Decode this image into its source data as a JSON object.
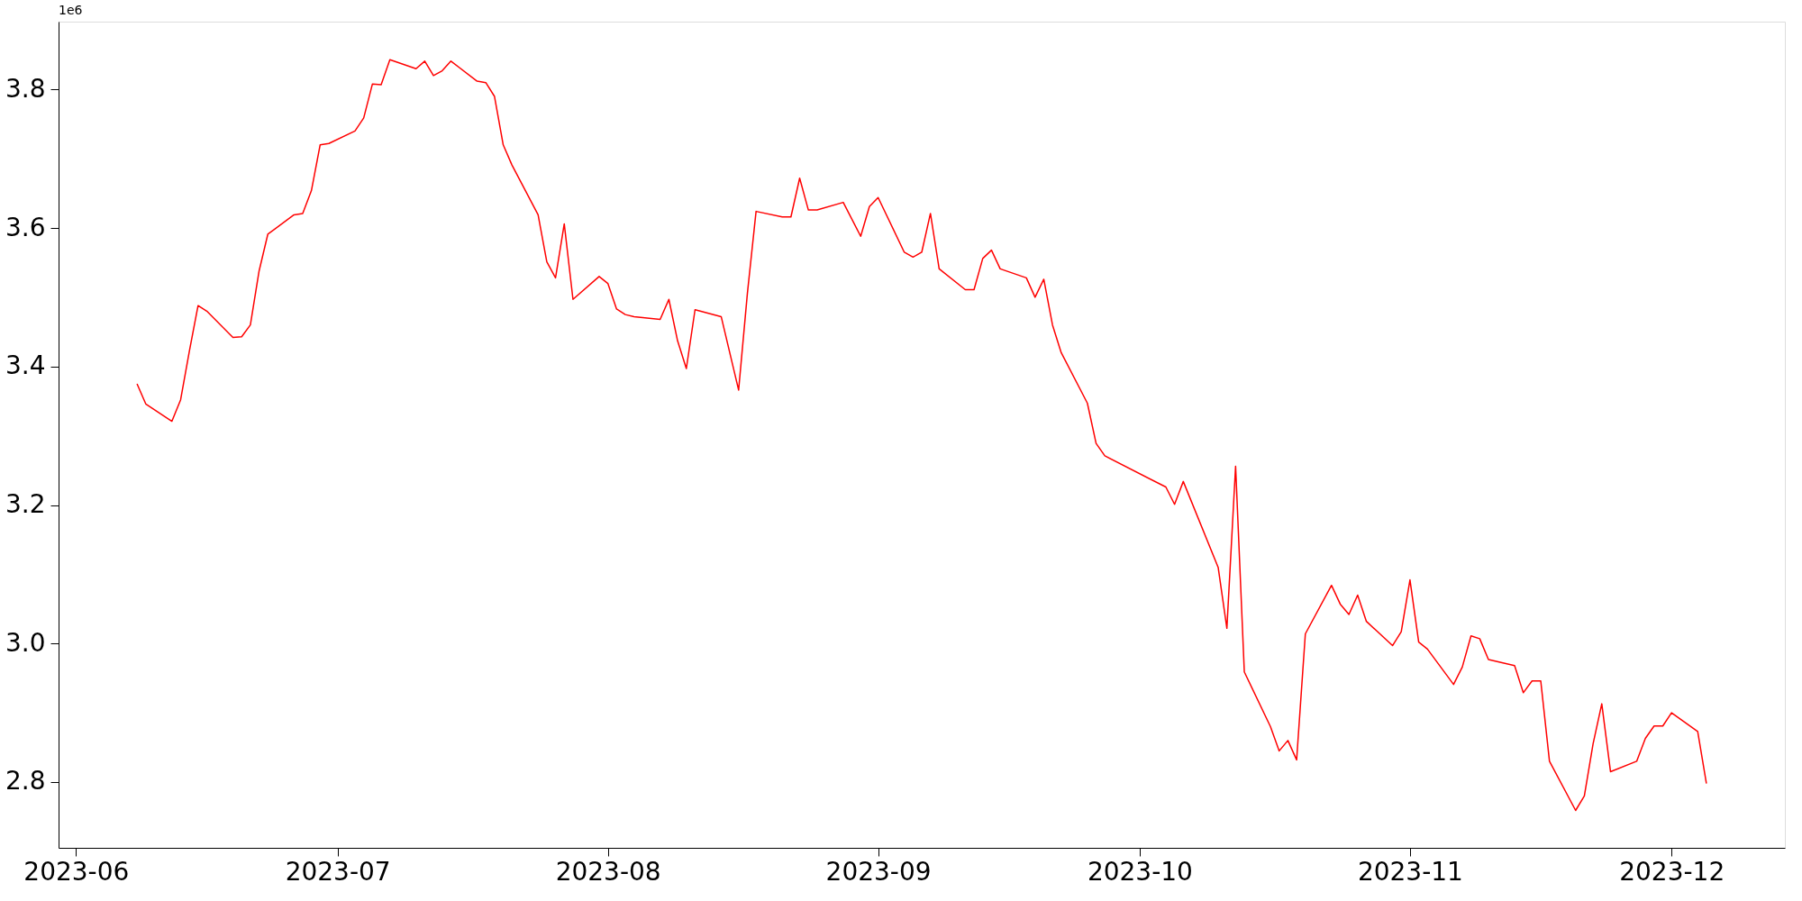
{
  "chart_data": {
    "type": "line",
    "x": [
      "2023-06-08",
      "2023-06-09",
      "2023-06-12",
      "2023-06-13",
      "2023-06-14",
      "2023-06-15",
      "2023-06-16",
      "2023-06-19",
      "2023-06-20",
      "2023-06-21",
      "2023-06-22",
      "2023-06-23",
      "2023-06-26",
      "2023-06-27",
      "2023-06-28",
      "2023-06-29",
      "2023-06-30",
      "2023-07-03",
      "2023-07-04",
      "2023-07-05",
      "2023-07-06",
      "2023-07-07",
      "2023-07-10",
      "2023-07-11",
      "2023-07-12",
      "2023-07-13",
      "2023-07-14",
      "2023-07-17",
      "2023-07-18",
      "2023-07-19",
      "2023-07-20",
      "2023-07-21",
      "2023-07-24",
      "2023-07-25",
      "2023-07-26",
      "2023-07-27",
      "2023-07-28",
      "2023-07-31",
      "2023-08-01",
      "2023-08-02",
      "2023-08-03",
      "2023-08-04",
      "2023-08-07",
      "2023-08-08",
      "2023-08-09",
      "2023-08-10",
      "2023-08-11",
      "2023-08-14",
      "2023-08-16",
      "2023-08-17",
      "2023-08-18",
      "2023-08-21",
      "2023-08-22",
      "2023-08-23",
      "2023-08-24",
      "2023-08-25",
      "2023-08-28",
      "2023-08-30",
      "2023-08-31",
      "2023-09-01",
      "2023-09-04",
      "2023-09-05",
      "2023-09-06",
      "2023-09-07",
      "2023-09-08",
      "2023-09-11",
      "2023-09-12",
      "2023-09-13",
      "2023-09-14",
      "2023-09-15",
      "2023-09-18",
      "2023-09-19",
      "2023-09-20",
      "2023-09-21",
      "2023-09-22",
      "2023-09-25",
      "2023-09-26",
      "2023-09-27",
      "2023-10-04",
      "2023-10-05",
      "2023-10-06",
      "2023-10-10",
      "2023-10-11",
      "2023-10-12",
      "2023-10-13",
      "2023-10-16",
      "2023-10-17",
      "2023-10-18",
      "2023-10-19",
      "2023-10-20",
      "2023-10-23",
      "2023-10-24",
      "2023-10-25",
      "2023-10-26",
      "2023-10-27",
      "2023-10-30",
      "2023-10-31",
      "2023-11-01",
      "2023-11-02",
      "2023-11-03",
      "2023-11-06",
      "2023-11-07",
      "2023-11-08",
      "2023-11-09",
      "2023-11-10",
      "2023-11-13",
      "2023-11-14",
      "2023-11-15",
      "2023-11-16",
      "2023-11-17",
      "2023-11-20",
      "2023-11-21",
      "2023-11-22",
      "2023-11-23",
      "2023-11-24",
      "2023-11-27",
      "2023-11-28",
      "2023-11-29",
      "2023-11-30",
      "2023-12-01",
      "2023-12-04",
      "2023-12-05"
    ],
    "series": [
      {
        "color": "#ff0000",
        "values": [
          3.375,
          3.346,
          3.321,
          3.352,
          3.422,
          3.488,
          3.48,
          3.442,
          3.443,
          3.46,
          3.538,
          3.591,
          3.619,
          3.621,
          3.654,
          3.72,
          3.722,
          3.74,
          3.759,
          3.808,
          3.807,
          3.843,
          3.83,
          3.841,
          3.82,
          3.827,
          3.841,
          3.812,
          3.81,
          3.79,
          3.72,
          3.691,
          3.619,
          3.551,
          3.528,
          3.606,
          3.497,
          3.53,
          3.52,
          3.483,
          3.475,
          3.472,
          3.468,
          3.497,
          3.437,
          3.397,
          3.482,
          3.472,
          3.366,
          3.505,
          3.624,
          3.616,
          3.616,
          3.672,
          3.626,
          3.626,
          3.637,
          3.588,
          3.631,
          3.644,
          3.565,
          3.558,
          3.565,
          3.621,
          3.541,
          3.511,
          3.511,
          3.556,
          3.568,
          3.541,
          3.528,
          3.5,
          3.526,
          3.46,
          3.42,
          3.347,
          3.289,
          3.271,
          3.226,
          3.201,
          3.234,
          3.11,
          3.022,
          3.256,
          2.959,
          2.88,
          2.845,
          2.86,
          2.832,
          3.014,
          3.084,
          3.057,
          3.042,
          3.07,
          3.032,
          2.997,
          3.017,
          3.092,
          3.002,
          2.992,
          2.941,
          2.966,
          3.011,
          3.007,
          2.977,
          2.968,
          2.929,
          2.946,
          2.946,
          2.83,
          2.759,
          2.78,
          2.855,
          2.913,
          2.815,
          2.83,
          2.863,
          2.881,
          2.881,
          2.9,
          2.873,
          2.798
        ]
      }
    ],
    "xlim": [
      "2023-05-30",
      "2023-12-14"
    ],
    "xticks": [
      {
        "value": "2023-06",
        "label": "2023-06"
      },
      {
        "value": "2023-07",
        "label": "2023-07"
      },
      {
        "value": "2023-08",
        "label": "2023-08"
      },
      {
        "value": "2023-09",
        "label": "2023-09"
      },
      {
        "value": "2023-10",
        "label": "2023-10"
      },
      {
        "value": "2023-11",
        "label": "2023-11"
      },
      {
        "value": "2023-12",
        "label": "2023-12"
      }
    ],
    "ylim": [
      2.705,
      3.898
    ],
    "yticks": [
      {
        "value": 2.8,
        "label": "2.8"
      },
      {
        "value": 3.0,
        "label": "3.0"
      },
      {
        "value": 3.2,
        "label": "3.2"
      },
      {
        "value": 3.4,
        "label": "3.4"
      },
      {
        "value": 3.6,
        "label": "3.6"
      },
      {
        "value": 3.8,
        "label": "3.8"
      }
    ],
    "annotations": [
      "1e6"
    ],
    "grid": false
  }
}
